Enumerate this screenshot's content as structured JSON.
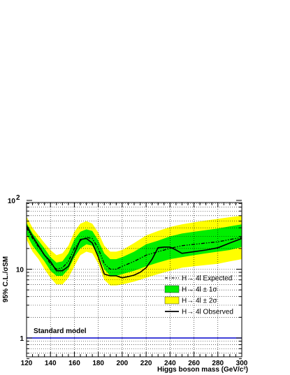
{
  "chart_data": {
    "type": "line",
    "xlabel": "Higgs boson mass (GeV/c²)",
    "ylabel": "95% C.L./σSM",
    "xlim": [
      120,
      300
    ],
    "ylim": [
      0.5,
      100
    ],
    "y_scale": "log",
    "grid": true,
    "legend_position": "center-right",
    "x_ticks": [
      "120",
      "140",
      "160",
      "180",
      "200",
      "220",
      "240",
      "260",
      "280",
      "300"
    ],
    "y_ticks": [
      {
        "label": "1",
        "value": 1
      },
      {
        "label": "10",
        "value": 10
      },
      {
        "label": "10",
        "sup": "2",
        "value": 100
      }
    ],
    "colors": {
      "band_2sigma": "#ffff00",
      "band_1sigma": "#00ee00",
      "expected": "#000000",
      "observed": "#000000",
      "standard_model": "#0000cc"
    },
    "series": [
      {
        "name": "H→ 4l ± 2σ",
        "kind": "band",
        "x": [
          120,
          125,
          130,
          135,
          140,
          145,
          150,
          155,
          160,
          165,
          170,
          175,
          180,
          185,
          190,
          195,
          200,
          210,
          220,
          230,
          240,
          250,
          260,
          270,
          280,
          290,
          300
        ],
        "low": [
          27,
          18,
          14,
          10,
          7.5,
          6.0,
          6.0,
          7.5,
          11,
          16,
          18,
          17,
          12,
          7.0,
          5.8,
          5.8,
          6.0,
          6.6,
          7.5,
          8.5,
          9.5,
          10.5,
          11,
          11.5,
          12,
          13,
          14
        ],
        "high": [
          58,
          40,
          31,
          24,
          19,
          16,
          17,
          22,
          35,
          46,
          50,
          46,
          34,
          22,
          18,
          18,
          19,
          24,
          31,
          36,
          41,
          45,
          48,
          51,
          54,
          57,
          60
        ]
      },
      {
        "name": "H→ 4l ± 1σ",
        "kind": "band",
        "x": [
          120,
          125,
          130,
          135,
          140,
          145,
          150,
          155,
          160,
          165,
          170,
          175,
          180,
          185,
          190,
          195,
          200,
          210,
          220,
          230,
          240,
          250,
          260,
          270,
          280,
          290,
          300
        ],
        "low": [
          32,
          22,
          17,
          13,
          9.5,
          8.0,
          8.0,
          10,
          15,
          20,
          23,
          22,
          16,
          10,
          8.0,
          8.0,
          8.5,
          9.5,
          11,
          12.5,
          14,
          15,
          16,
          17,
          18,
          19,
          21
        ],
        "high": [
          47,
          33,
          26,
          20,
          15,
          12.5,
          13,
          17,
          27,
          35,
          38,
          36,
          26,
          17,
          14,
          14,
          15,
          18,
          23,
          26,
          30,
          33,
          35,
          37,
          39,
          42,
          45
        ]
      },
      {
        "name": "H→ 4l Expected",
        "kind": "line",
        "style": "dash-dot",
        "x": [
          120,
          125,
          130,
          135,
          140,
          145,
          150,
          155,
          160,
          165,
          170,
          175,
          180,
          185,
          190,
          195,
          200,
          210,
          220,
          230,
          240,
          250,
          260,
          270,
          280,
          290,
          300
        ],
        "y": [
          40,
          28,
          21,
          16,
          12,
          10,
          10.5,
          13,
          20,
          26,
          29,
          28,
          20,
          12,
          10,
          10,
          11,
          13,
          16,
          18,
          20,
          22,
          23,
          24,
          25,
          27,
          29
        ]
      },
      {
        "name": "H→ 4l Observed",
        "kind": "line",
        "style": "solid",
        "x": [
          120,
          125,
          130,
          135,
          140,
          145,
          150,
          155,
          160,
          165,
          170,
          175,
          180,
          185,
          190,
          195,
          200,
          205,
          210,
          215,
          220,
          225,
          230,
          235,
          240,
          245,
          250,
          260,
          270,
          280,
          290,
          300
        ],
        "y": [
          43,
          30,
          22,
          16,
          13,
          9.5,
          9.5,
          11,
          17,
          27,
          28,
          24,
          15,
          8.5,
          8.0,
          8.0,
          7.5,
          7.8,
          8.2,
          9.0,
          10.5,
          14,
          20.5,
          21,
          21,
          19,
          17,
          18,
          19,
          20.5,
          24,
          28
        ]
      },
      {
        "name": "Standard model",
        "kind": "line",
        "style": "solid",
        "x": [
          120,
          300
        ],
        "y": [
          1,
          1
        ]
      }
    ],
    "legend": [
      {
        "label": "H→ 4l Expected",
        "symbol": "dashdot"
      },
      {
        "label": "H→ 4l ± 1σ",
        "symbol": "green-box"
      },
      {
        "label": "H→ 4l ± 2σ",
        "symbol": "yellow-box"
      },
      {
        "label": "H→ 4l Observed",
        "symbol": "solid"
      }
    ],
    "annotation": "Standard model"
  }
}
